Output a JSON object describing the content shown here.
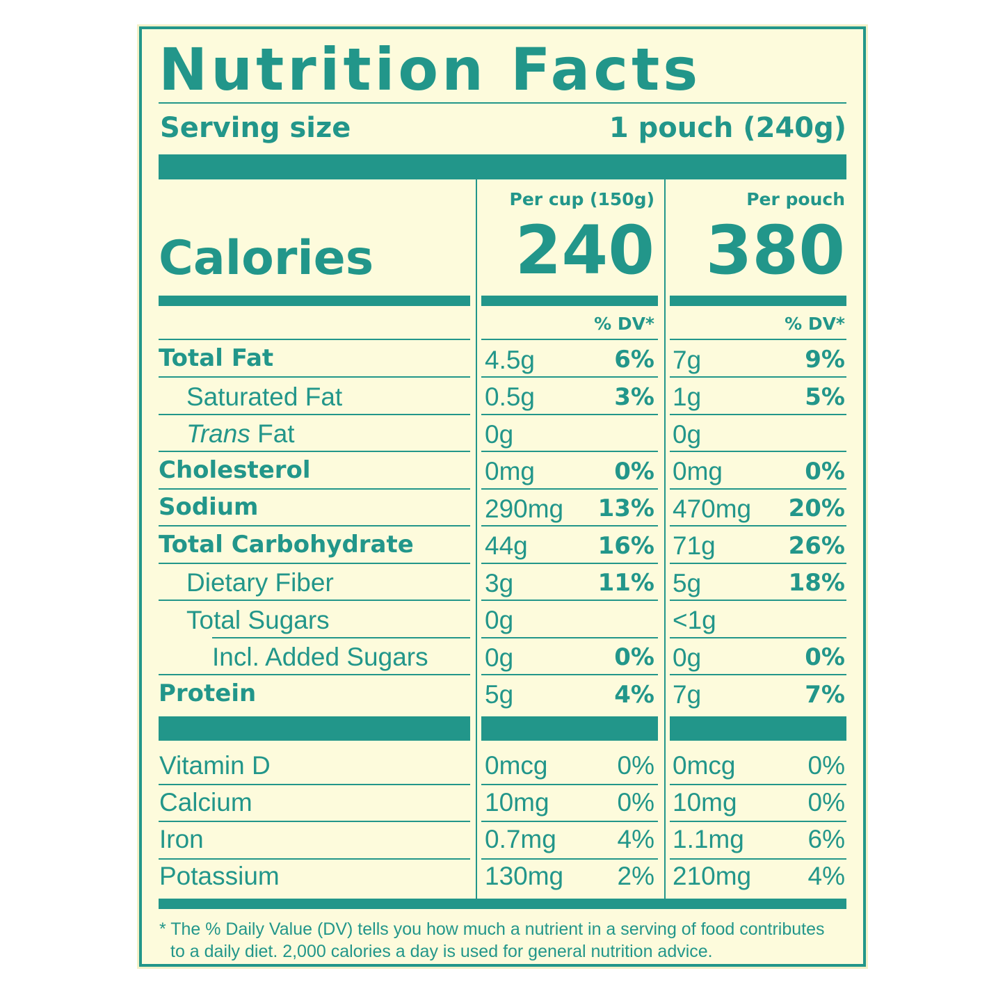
{
  "title": "Nutrition Facts",
  "serving": {
    "label": "Serving size",
    "value": "1 pouch (240g)"
  },
  "calories": {
    "label": "Calories",
    "columns": [
      {
        "header": "Per cup (150g)",
        "value": "240"
      },
      {
        "header": "Per pouch",
        "value": "380"
      }
    ]
  },
  "dv_headers": [
    "% DV*",
    "% DV*"
  ],
  "nutrients": [
    {
      "name": [
        {
          "text": "Total Fat"
        }
      ],
      "bold": true,
      "indent": 0,
      "cup": "4.5g",
      "cup_dv": "6%",
      "pouch": "7g",
      "pouch_dv": "9%"
    },
    {
      "name": [
        {
          "text": "Saturated Fat"
        }
      ],
      "bold": false,
      "indent": 1,
      "cup": "0.5g",
      "cup_dv": "3%",
      "pouch": "1g",
      "pouch_dv": "5%"
    },
    {
      "name": [
        {
          "text": "Trans",
          "italic": true
        },
        {
          "text": " Fat"
        }
      ],
      "bold": false,
      "indent": 1,
      "cup": "0g",
      "cup_dv": null,
      "pouch": "0g",
      "pouch_dv": null
    },
    {
      "name": [
        {
          "text": "Cholesterol"
        }
      ],
      "bold": true,
      "indent": 0,
      "cup": "0mg",
      "cup_dv": "0%",
      "pouch": "0mg",
      "pouch_dv": "0%"
    },
    {
      "name": [
        {
          "text": "Sodium"
        }
      ],
      "bold": true,
      "indent": 0,
      "cup": "290mg",
      "cup_dv": "13%",
      "pouch": "470mg",
      "pouch_dv": "20%"
    },
    {
      "name": [
        {
          "text": "Total Carbohydrate"
        }
      ],
      "bold": true,
      "indent": 0,
      "cup": "44g",
      "cup_dv": "16%",
      "pouch": "71g",
      "pouch_dv": "26%"
    },
    {
      "name": [
        {
          "text": "Dietary Fiber"
        }
      ],
      "bold": false,
      "indent": 1,
      "cup": "3g",
      "cup_dv": "11%",
      "pouch": "5g",
      "pouch_dv": "18%"
    },
    {
      "name": [
        {
          "text": "Total Sugars"
        }
      ],
      "bold": false,
      "indent": 1,
      "cup": "0g",
      "cup_dv": null,
      "pouch": "<1g",
      "pouch_dv": null
    },
    {
      "name": [
        {
          "text": "Incl. Added Sugars"
        }
      ],
      "bold": false,
      "indent": 2,
      "cup": "0g",
      "cup_dv": "0%",
      "pouch": "0g",
      "pouch_dv": "0%"
    },
    {
      "name": [
        {
          "text": "Protein"
        }
      ],
      "bold": true,
      "indent": 0,
      "cup": "5g",
      "cup_dv": "4%",
      "pouch": "7g",
      "pouch_dv": "7%"
    }
  ],
  "vitamins": [
    {
      "name": "Vitamin D",
      "cup": "0mcg",
      "cup_dv": "0%",
      "pouch": "0mcg",
      "pouch_dv": "0%"
    },
    {
      "name": "Calcium",
      "cup": "10mg",
      "cup_dv": "0%",
      "pouch": "10mg",
      "pouch_dv": "0%"
    },
    {
      "name": "Iron",
      "cup": "0.7mg",
      "cup_dv": "4%",
      "pouch": "1.1mg",
      "pouch_dv": "6%"
    },
    {
      "name": "Potassium",
      "cup": "130mg",
      "cup_dv": "2%",
      "pouch": "210mg",
      "pouch_dv": "4%"
    }
  ],
  "footnote": [
    "* The % Daily Value (DV) tells you how much a nutrient in a serving of food contributes",
    "to a daily diet. 2,000 calories a day is used for general nutrition advice."
  ]
}
